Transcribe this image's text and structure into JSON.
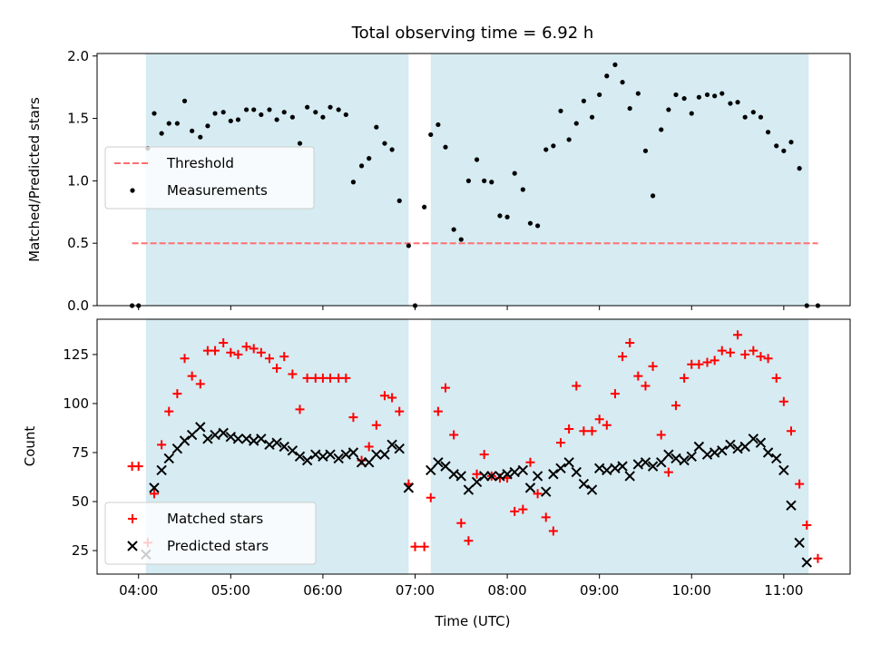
{
  "chart_data": [
    {
      "type": "scatter",
      "title": "Total observing time = 6.92 h",
      "ylabel": "Matched/Predicted stars",
      "xlim": [
        3.55,
        11.72
      ],
      "ylim": [
        0.0,
        2.02
      ],
      "yticks": [
        0.0,
        0.5,
        1.0,
        1.5,
        2.0
      ],
      "ytick_labels": [
        "0.0",
        "0.5",
        "1.0",
        "1.5",
        "2.0"
      ],
      "shaded_intervals": [
        [
          4.08,
          6.93
        ],
        [
          7.17,
          11.27
        ]
      ],
      "legend_position": "center-left",
      "series": [
        {
          "name": "Threshold",
          "kind": "dashed-line",
          "color": "#ff7070",
          "x": [
            3.93,
            11.37
          ],
          "y": [
            0.5,
            0.5
          ]
        },
        {
          "name": "Measurements",
          "kind": "dots",
          "color": "#000000",
          "x": [
            3.93,
            4.0,
            4.1,
            4.17,
            4.25,
            4.33,
            4.42,
            4.5,
            4.58,
            4.67,
            4.75,
            4.83,
            4.92,
            5.0,
            5.08,
            5.17,
            5.25,
            5.33,
            5.42,
            5.5,
            5.58,
            5.67,
            5.75,
            5.83,
            5.92,
            6.0,
            6.08,
            6.17,
            6.25,
            6.33,
            6.42,
            6.5,
            6.58,
            6.67,
            6.75,
            6.83,
            6.93,
            7.0,
            7.1,
            7.17,
            7.25,
            7.33,
            7.42,
            7.5,
            7.58,
            7.67,
            7.75,
            7.83,
            7.92,
            8.0,
            8.08,
            8.17,
            8.25,
            8.33,
            8.42,
            8.5,
            8.58,
            8.67,
            8.75,
            8.83,
            8.92,
            9.0,
            9.08,
            9.17,
            9.25,
            9.33,
            9.42,
            9.5,
            9.58,
            9.67,
            9.75,
            9.83,
            9.92,
            10.0,
            10.08,
            10.17,
            10.25,
            10.33,
            10.42,
            10.5,
            10.58,
            10.67,
            10.75,
            10.83,
            10.92,
            11.0,
            11.08,
            11.17,
            11.25,
            11.37
          ],
          "y": [
            0.0,
            0.0,
            1.26,
            1.54,
            1.38,
            1.46,
            1.46,
            1.64,
            1.4,
            1.35,
            1.44,
            1.54,
            1.55,
            1.48,
            1.49,
            1.57,
            1.57,
            1.53,
            1.57,
            1.49,
            1.55,
            1.51,
            1.3,
            1.59,
            1.55,
            1.51,
            1.59,
            1.57,
            1.53,
            0.99,
            1.12,
            1.18,
            1.43,
            1.3,
            1.25,
            0.84,
            0.48,
            0.0,
            0.79,
            1.37,
            1.45,
            1.27,
            0.61,
            0.53,
            1.0,
            1.17,
            1.0,
            0.99,
            0.72,
            0.71,
            1.06,
            0.93,
            0.66,
            0.64,
            1.25,
            1.28,
            1.56,
            1.33,
            1.46,
            1.64,
            1.51,
            1.69,
            1.84,
            1.93,
            1.79,
            1.58,
            1.7,
            1.24,
            0.88,
            1.41,
            1.57,
            1.69,
            1.66,
            1.54,
            1.67,
            1.69,
            1.68,
            1.7,
            1.62,
            1.63,
            1.51,
            1.55,
            1.51,
            1.39,
            1.28,
            1.24,
            1.31,
            1.1,
            0.0,
            0.0
          ]
        }
      ]
    },
    {
      "type": "scatter",
      "xlabel": "Time (UTC)",
      "ylabel": "Count",
      "xlim": [
        3.55,
        11.72
      ],
      "ylim": [
        13.0,
        143.0
      ],
      "xticks": [
        4,
        5,
        6,
        7,
        8,
        9,
        10,
        11
      ],
      "xtick_labels": [
        "04:00",
        "05:00",
        "06:00",
        "07:00",
        "08:00",
        "09:00",
        "10:00",
        "11:00"
      ],
      "yticks": [
        25,
        50,
        75,
        100,
        125
      ],
      "ytick_labels": [
        "25",
        "50",
        "75",
        "100",
        "125"
      ],
      "shaded_intervals": [
        [
          4.08,
          6.93
        ],
        [
          7.17,
          11.27
        ]
      ],
      "legend_position": "lower-left",
      "series": [
        {
          "name": "Matched stars",
          "marker": "plus",
          "color": "#ff0000",
          "x": [
            3.93,
            4.0,
            4.1,
            4.17,
            4.25,
            4.33,
            4.42,
            4.5,
            4.58,
            4.67,
            4.75,
            4.83,
            4.92,
            5.0,
            5.08,
            5.17,
            5.25,
            5.33,
            5.42,
            5.5,
            5.58,
            5.67,
            5.75,
            5.83,
            5.92,
            6.0,
            6.08,
            6.17,
            6.25,
            6.33,
            6.42,
            6.5,
            6.58,
            6.67,
            6.75,
            6.83,
            6.93,
            7.0,
            7.1,
            7.17,
            7.25,
            7.33,
            7.42,
            7.5,
            7.58,
            7.67,
            7.75,
            7.83,
            7.92,
            8.0,
            8.08,
            8.17,
            8.25,
            8.33,
            8.42,
            8.5,
            8.58,
            8.67,
            8.75,
            8.83,
            8.92,
            9.0,
            9.08,
            9.17,
            9.25,
            9.33,
            9.42,
            9.5,
            9.58,
            9.67,
            9.75,
            9.83,
            9.92,
            10.0,
            10.08,
            10.17,
            10.25,
            10.33,
            10.42,
            10.5,
            10.58,
            10.67,
            10.75,
            10.83,
            10.92,
            11.0,
            11.08,
            11.17,
            11.25,
            11.37
          ],
          "y": [
            68,
            68,
            29,
            54,
            79,
            96,
            105,
            123,
            114,
            110,
            127,
            127,
            131,
            126,
            125,
            129,
            128,
            126,
            123,
            118,
            124,
            115,
            97,
            113,
            113,
            113,
            113,
            113,
            113,
            93,
            71,
            78,
            89,
            104,
            103,
            96,
            59,
            27,
            27,
            52,
            96,
            108,
            84,
            39,
            30,
            64,
            74,
            63,
            62,
            62,
            45,
            46,
            70,
            54,
            42,
            35,
            80,
            87,
            109,
            86,
            86,
            92,
            89,
            105,
            124,
            131,
            114,
            109,
            119,
            84,
            65,
            99,
            113,
            120,
            120,
            121,
            122,
            127,
            126,
            135,
            125,
            127,
            124,
            123,
            113,
            101,
            86,
            59,
            38,
            21
          ]
        },
        {
          "name": "Predicted stars",
          "marker": "x",
          "color": "#000000",
          "x": [
            4.08,
            4.17,
            4.25,
            4.33,
            4.42,
            4.5,
            4.58,
            4.67,
            4.75,
            4.83,
            4.92,
            5.0,
            5.08,
            5.17,
            5.25,
            5.33,
            5.42,
            5.5,
            5.58,
            5.67,
            5.75,
            5.83,
            5.92,
            6.0,
            6.08,
            6.17,
            6.25,
            6.33,
            6.42,
            6.5,
            6.58,
            6.67,
            6.75,
            6.83,
            6.93,
            7.17,
            7.25,
            7.33,
            7.42,
            7.5,
            7.58,
            7.67,
            7.75,
            7.83,
            7.92,
            8.0,
            8.08,
            8.17,
            8.25,
            8.33,
            8.42,
            8.5,
            8.58,
            8.67,
            8.75,
            8.83,
            8.92,
            9.0,
            9.08,
            9.17,
            9.25,
            9.33,
            9.42,
            9.5,
            9.58,
            9.67,
            9.75,
            9.83,
            9.92,
            10.0,
            10.08,
            10.17,
            10.25,
            10.33,
            10.42,
            10.5,
            10.58,
            10.67,
            10.75,
            10.83,
            10.92,
            11.0,
            11.08,
            11.17,
            11.25
          ],
          "y": [
            23,
            57,
            66,
            72,
            77,
            81,
            84,
            88,
            82,
            84,
            85,
            83,
            82,
            82,
            81,
            82,
            79,
            80,
            78,
            76,
            73,
            71,
            74,
            73,
            74,
            72,
            74,
            75,
            70,
            70,
            74,
            74,
            79,
            77,
            57,
            66,
            70,
            68,
            64,
            63,
            56,
            60,
            63,
            63,
            63,
            64,
            65,
            66,
            57,
            63,
            55,
            64,
            67,
            70,
            65,
            59,
            56,
            67,
            66,
            67,
            68,
            63,
            69,
            70,
            68,
            70,
            74,
            72,
            71,
            73,
            78,
            74,
            75,
            76,
            79,
            77,
            78,
            82,
            80,
            75,
            72,
            66,
            48,
            29,
            19
          ]
        }
      ]
    }
  ]
}
